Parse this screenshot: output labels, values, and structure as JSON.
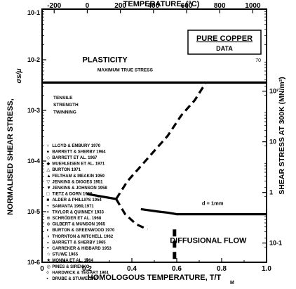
{
  "chart_data": {
    "type": "scatter",
    "title": "PURE COPPER",
    "subtitle": "DATA",
    "xlabel_bottom": "HOMOLOGOUS TEMPERATURE, T/T",
    "xlabel_bottom_sub": "M",
    "xlabel_top": "TEMPERATURE, (°C)",
    "ylabel_left": "NORMALISED SHEAR STRESS,",
    "ylabel_left_sym": "σs/μ",
    "ylabel_right": "SHEAR STRESS AT 300K (MN/m²)",
    "x_ticks": [
      "0",
      "0.2",
      "0.4",
      "0.6",
      "0.8",
      "1.0"
    ],
    "x_tick_values": [
      0,
      0.2,
      0.4,
      0.6,
      0.8,
      1.0
    ],
    "top_ticks": [
      "-200",
      "0",
      "200",
      "400",
      "600",
      "800",
      "1000"
    ],
    "top_tick_values": [
      -200,
      0,
      200,
      400,
      600,
      800,
      1000
    ],
    "y_ticks": [
      "10-2",
      "10-3",
      "10-4",
      "10-5",
      "10-6"
    ],
    "y_tick_values": [
      -2,
      -3,
      -4,
      -5,
      -6
    ],
    "y_top_tick": "10-1",
    "right_ticks": [
      "10²",
      "10",
      "1",
      "10-1"
    ],
    "right_tick_logs": [
      2,
      1,
      0,
      -1
    ],
    "xlim": [
      0,
      1.0
    ],
    "ylim_log10": [
      -6,
      -1
    ],
    "Tm_K": 1356,
    "region_labels": {
      "plasticity": "PLASTICITY",
      "max_true_stress": "MAXIMUM TRUE STRESS",
      "tensile": "TENSILE",
      "strength": "STRENGTH",
      "twinning": "TWINNING",
      "diffusional_flow": "DIFFUSIONAL FLOW",
      "grain_size": "d = 1mm",
      "corner_num": "70"
    },
    "boundaries": [
      {
        "name": "plasticity",
        "points": [
          [
            0,
            -2.45
          ],
          [
            0.69,
            -2.45
          ],
          [
            1.0,
            -2.45
          ]
        ]
      },
      {
        "name": "diffusional_flow",
        "points": [
          [
            0.44,
            -4.95
          ],
          [
            0.52,
            -5.0
          ],
          [
            0.56,
            -5.02
          ],
          [
            0.6,
            -5.05
          ],
          [
            1.0,
            -5.05
          ]
        ]
      },
      {
        "name": "power_law_lower",
        "points": [
          [
            0.2,
            -4.65
          ],
          [
            0.33,
            -4.75
          ]
        ]
      },
      {
        "name": "branch_upper",
        "points": [
          [
            0.33,
            -4.75
          ],
          [
            0.38,
            -4.4
          ],
          [
            0.42,
            -4.2
          ],
          [
            0.48,
            -3.9
          ],
          [
            0.56,
            -3.5
          ],
          [
            0.62,
            -3.1
          ],
          [
            0.68,
            -2.8
          ],
          [
            0.73,
            -2.45
          ]
        ]
      },
      {
        "name": "branch_lower",
        "points": [
          [
            0.33,
            -4.75
          ],
          [
            0.37,
            -5.05
          ],
          [
            0.42,
            -5.25
          ],
          [
            0.47,
            -5.35
          ]
        ]
      },
      {
        "name": "vertical",
        "points": [
          [
            0.59,
            -5.35
          ],
          [
            0.59,
            -6.0
          ]
        ]
      }
    ],
    "legend": [
      "LLOYD & EMBURY 1970",
      "BARRETT & SHERBY 1964",
      "BARRETT ET AL. 1967",
      "MUEHLEISEN ET AL. 1971",
      "BURTON 1971",
      "FELTHAM & MEAKIN 1959",
      "JENKINS & DIGGES 1951",
      "JENKINS & JOHNSON 1958",
      "TIETZ & DORN 1956",
      "ALDER & PHILLIPS 1954",
      "SAMANTA 1969,1971",
      "TAYLOR & QUINNEY 1933",
      "SCHRÖDER ET AL. 1968",
      "GILBERT & MUNSON 1965",
      "BURTON & GREENWOOD 1970",
      "THORNTON & MITCHELL 1962",
      "BARRETT & SHERBY 1965",
      "CARREKER & HIBBARD 1953",
      "STUWE 1965",
      "MONMA ET AL. 1964",
      "PINES & SIRENKO",
      "HARDWICK & TEGART 1961",
      "DRUBE & STUWE 1967"
    ],
    "legend_glyphs": [
      "○",
      "●",
      "◇",
      "◆",
      "△",
      "▲",
      "▽",
      "▼",
      "□",
      "■",
      "+",
      "×",
      "⊕",
      "⊗",
      "◐",
      "◑",
      "◒",
      "◓",
      "☆",
      "★",
      "◎",
      "◊",
      "▪"
    ],
    "grid": false,
    "legend_position": "left"
  }
}
